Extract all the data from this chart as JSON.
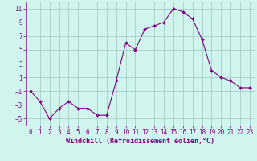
{
  "x": [
    0,
    1,
    2,
    3,
    4,
    5,
    6,
    7,
    8,
    9,
    10,
    11,
    12,
    13,
    14,
    15,
    16,
    17,
    18,
    19,
    20,
    21,
    22,
    23
  ],
  "y": [
    -1,
    -2.5,
    -5,
    -3.5,
    -2.5,
    -3.5,
    -3.5,
    -4.5,
    -4.5,
    0.5,
    6,
    5,
    8,
    8.5,
    9,
    11,
    10.5,
    9.5,
    6.5,
    2,
    1,
    0.5,
    -0.5,
    -0.5
  ],
  "line_color": "#800080",
  "marker": "D",
  "marker_size": 2.0,
  "bg_color": "#d0f5ee",
  "grid_color": "#a0c8c0",
  "xlabel": "Windchill (Refroidissement éolien,°C)",
  "xlabel_color": "#800080",
  "tick_color": "#800080",
  "spine_color": "#800080",
  "xlim": [
    -0.5,
    23.5
  ],
  "ylim": [
    -6,
    12
  ],
  "yticks": [
    -5,
    -3,
    -1,
    1,
    3,
    5,
    7,
    9,
    11
  ],
  "xticks": [
    0,
    1,
    2,
    3,
    4,
    5,
    6,
    7,
    8,
    9,
    10,
    11,
    12,
    13,
    14,
    15,
    16,
    17,
    18,
    19,
    20,
    21,
    22,
    23
  ],
  "xlabel_fontsize": 6.0,
  "tick_fontsize": 5.5
}
